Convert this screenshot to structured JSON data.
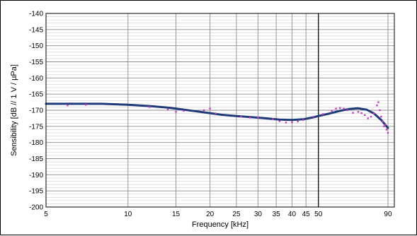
{
  "chart_data": {
    "type": "scatter",
    "xlabel": "Frequency [kHz]",
    "ylabel": "Sensibility [dB // 1 V / µPa]",
    "x_scale": "log",
    "xlim": [
      5,
      95
    ],
    "ylim": [
      -200,
      -140
    ],
    "x_ticks": [
      5,
      10,
      15,
      20,
      25,
      30,
      35,
      40,
      45,
      50,
      90
    ],
    "x_tick_labels": [
      "5",
      "10",
      "15",
      "20",
      "25",
      "30",
      "35",
      "40",
      "45",
      "50",
      "90"
    ],
    "y_ticks": [
      -140,
      -145,
      -150,
      -155,
      -160,
      -165,
      -170,
      -175,
      -180,
      -185,
      -190,
      -195,
      -200
    ],
    "y_tick_labels": [
      "-140",
      "-145",
      "-150",
      "-155",
      "-160",
      "-165",
      "-170",
      "-175",
      "-180",
      "-185",
      "-190",
      "-195",
      "-200"
    ],
    "grid": true,
    "minor_y_step": 1,
    "vertical_reference_line_x": 50,
    "series": [
      {
        "kind": "line",
        "color": "#1f3a78",
        "x": [
          5,
          6,
          8,
          10,
          12,
          14,
          16,
          18,
          20,
          22,
          25,
          28,
          30,
          33,
          36,
          40,
          44,
          48,
          50,
          55,
          60,
          65,
          70,
          75,
          80,
          85,
          90
        ],
        "y": [
          -168.0,
          -168.0,
          -168.0,
          -168.3,
          -168.7,
          -169.2,
          -169.8,
          -170.4,
          -170.9,
          -171.4,
          -171.8,
          -172.1,
          -172.3,
          -172.6,
          -172.9,
          -173.0,
          -172.8,
          -172.2,
          -171.8,
          -171.0,
          -170.2,
          -169.6,
          -169.4,
          -169.8,
          -171.0,
          -173.0,
          -175.5
        ]
      },
      {
        "kind": "points",
        "color": "#cc33cc",
        "x": [
          6.0,
          7.0,
          12.0,
          14.0,
          15.0,
          16.0,
          19.0,
          20.0,
          21.0,
          26.0,
          28.0,
          30.0,
          34.0,
          36.0,
          38.0,
          40.0,
          42.0,
          44.0,
          48.0,
          52.0,
          56.0,
          58.0,
          60.0,
          62.0,
          64.0,
          67.0,
          70.0,
          72.0,
          74.0,
          76.0,
          78.0,
          80.0,
          82.0,
          83.0,
          84.0,
          85.0,
          86.0,
          87.0,
          88.0,
          89.0,
          90.0
        ],
        "y": [
          -168.5,
          -168.3,
          -169.0,
          -169.8,
          -170.5,
          -170.2,
          -170.0,
          -169.5,
          -171.0,
          -172.0,
          -172.3,
          -172.2,
          -172.8,
          -173.4,
          -173.8,
          -173.7,
          -173.5,
          -173.0,
          -172.0,
          -171.2,
          -170.2,
          -169.5,
          -169.3,
          -169.5,
          -170.0,
          -170.8,
          -170.5,
          -170.9,
          -171.5,
          -172.5,
          -172.0,
          -171.0,
          -168.5,
          -167.5,
          -170.0,
          -172.0,
          -173.5,
          -175.0,
          -174.5,
          -176.0,
          -177.0
        ]
      }
    ]
  }
}
